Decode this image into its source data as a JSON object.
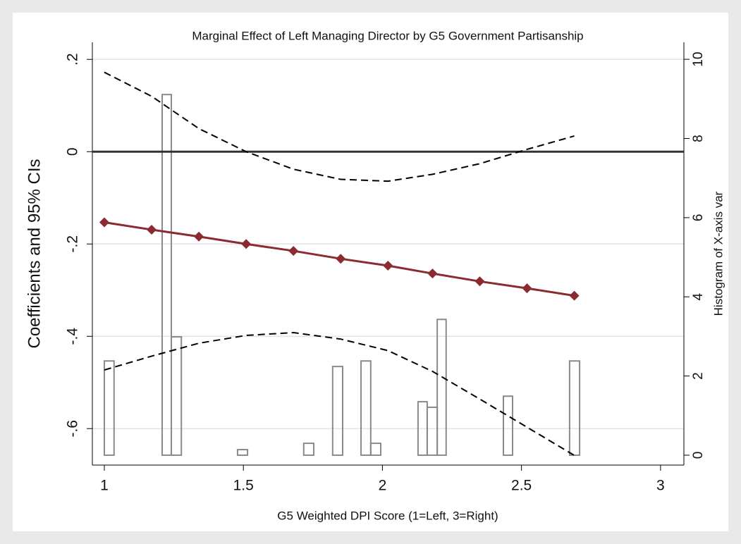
{
  "chart_data": {
    "type": "line",
    "title": "Marginal Effect of Left Managing Director by G5 Government Partisanship",
    "x_label": "G5 Weighted DPI Score (1=Left, 3=Right)",
    "y_label": "Coefficients and 95% CIs",
    "y2_label": "Histogram of X-axis var",
    "x": [
      1,
      1.17,
      1.34,
      1.51,
      1.68,
      1.85,
      2.02,
      2.18,
      2.35,
      2.52,
      2.69
    ],
    "series": [
      {
        "values": [
          -0.153,
          -0.169,
          -0.184,
          -0.2,
          -0.215,
          -0.232,
          -0.247,
          -0.264,
          -0.281,
          -0.296,
          -0.312
        ],
        "color": "#8b2b30",
        "marker": "diamond"
      },
      {
        "values": [
          0.172,
          0.12,
          0.05,
          0,
          -0.038,
          -0.06,
          -0.064,
          -0.049,
          -0.026,
          0.005,
          0.034
        ],
        "color": "#000000",
        "dashed": true
      },
      {
        "values": [
          -0.473,
          -0.443,
          -0.415,
          -0.398,
          -0.392,
          -0.406,
          -0.431,
          -0.476,
          -0.536,
          -0.597,
          -0.658
        ],
        "color": "#000000",
        "dashed": true
      }
    ],
    "histogram": {
      "axis": "y2",
      "color": "#8a8a8a",
      "left_edges": [
        1.0,
        1.208,
        1.241,
        1.479,
        1.717,
        1.821,
        1.923,
        1.958,
        2.128,
        2.161,
        2.197,
        2.435,
        2.673
      ],
      "right_edges": [
        1.035,
        1.241,
        1.277,
        1.515,
        1.753,
        1.857,
        1.958,
        1.994,
        2.161,
        2.197,
        2.229,
        2.468,
        2.709
      ],
      "values": [
        2.38,
        9.11,
        2.99,
        0.14,
        0.3,
        2.24,
        2.38,
        0.3,
        1.35,
        1.21,
        3.43,
        1.49,
        2.38
      ]
    },
    "reference_line": 0,
    "xlim": [
      0.957,
      3.084
    ],
    "xticks": [
      1,
      1.5,
      2,
      2.5,
      3
    ],
    "ylim": [
      -0.679,
      0.237
    ],
    "yticks": [
      {
        "value": -0.6,
        "label": "-.6"
      },
      {
        "value": -0.4,
        "label": "-.4"
      },
      {
        "value": -0.2,
        "label": "-.2"
      },
      0,
      {
        "value": 0.2,
        "label": ".2"
      }
    ],
    "y2lim": [
      -0.25,
      10.43
    ],
    "y2ticks": [
      0,
      2,
      4,
      6,
      8,
      10
    ],
    "grid": true
  }
}
